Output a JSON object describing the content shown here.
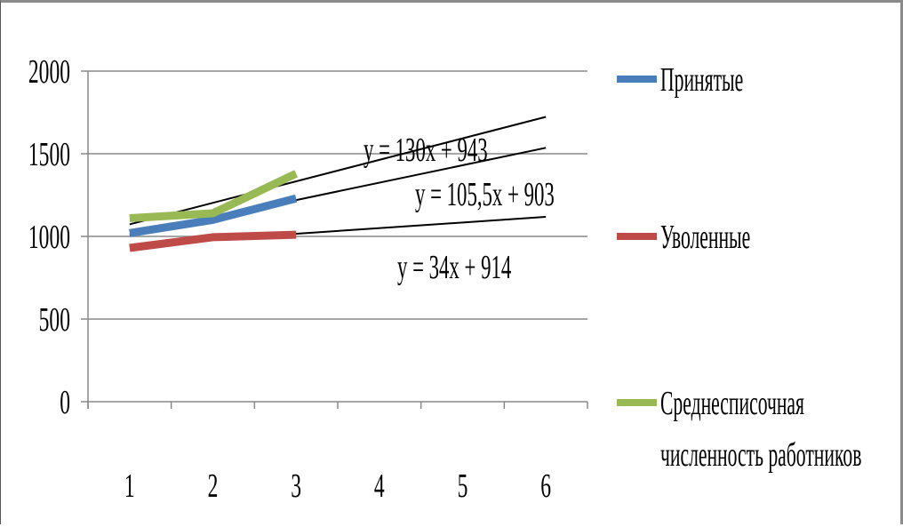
{
  "chart_data": {
    "type": "line",
    "x": [
      1,
      2,
      3,
      4,
      5,
      6
    ],
    "ylim": [
      0,
      2000
    ],
    "yticks": [
      0,
      500,
      1000,
      1500,
      2000
    ],
    "grid": true,
    "legend_position": "right",
    "series": [
      {
        "name": "Принятые",
        "color": "#4a7ebb",
        "x": [
          1,
          2,
          3
        ],
        "values": [
          1020,
          1100,
          1230
        ]
      },
      {
        "name": "Уволенные",
        "color": "#be4b48",
        "x": [
          1,
          2,
          3
        ],
        "values": [
          930,
          995,
          1010
        ]
      },
      {
        "name": "Среднесписочная численность работников",
        "color": "#98b954",
        "x": [
          1,
          2,
          3
        ],
        "values": [
          1110,
          1140,
          1380
        ]
      }
    ],
    "trendlines": [
      {
        "label": "y = 130x + 943",
        "slope": 130,
        "intercept": 943
      },
      {
        "label": "y = 105,5x + 903",
        "slope": 105.5,
        "intercept": 903
      },
      {
        "label": "y = 34x + 914",
        "slope": 34,
        "intercept": 914
      }
    ],
    "legend_lines": {
      "s0": [
        "Принятые"
      ],
      "s1": [
        "Уволенные"
      ],
      "s2": [
        "Среднесписочная",
        "численность работников"
      ]
    }
  }
}
